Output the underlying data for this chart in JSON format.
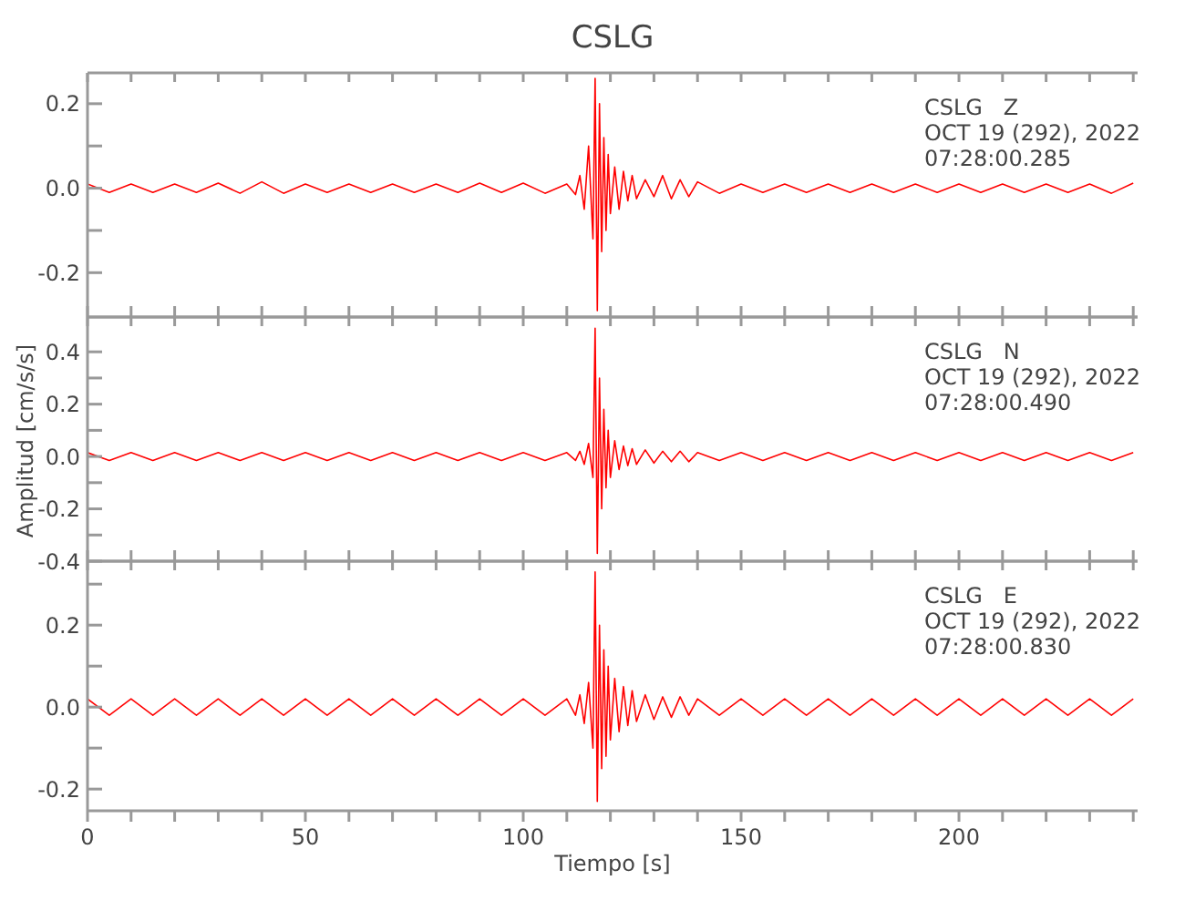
{
  "chart_data": [
    {
      "type": "line",
      "title": "CSLG",
      "annotations": [
        "CSLG   Z",
        "OCT 19 (292), 2022",
        "07:28:00.285"
      ],
      "marker": "none",
      "tick_labels": "y",
      "x": [
        0,
        5,
        10,
        15,
        20,
        25,
        30,
        35,
        40,
        45,
        50,
        55,
        60,
        65,
        70,
        75,
        80,
        85,
        90,
        95,
        100,
        105,
        110,
        112,
        113,
        114,
        115,
        116,
        116.5,
        117,
        117.5,
        118,
        118.5,
        119,
        119.5,
        120,
        121,
        122,
        123,
        124,
        125,
        126,
        128,
        130,
        132,
        134,
        136,
        138,
        140,
        145,
        150,
        155,
        160,
        165,
        170,
        175,
        180,
        185,
        190,
        195,
        200,
        205,
        210,
        215,
        220,
        225,
        230,
        235,
        240
      ],
      "series": [
        {
          "color": "#ff0000",
          "values": [
            0.01,
            -0.01,
            0.01,
            -0.01,
            0.01,
            -0.01,
            0.012,
            -0.012,
            0.015,
            -0.012,
            0.01,
            -0.01,
            0.01,
            -0.01,
            0.01,
            -0.01,
            0.01,
            -0.01,
            0.012,
            -0.01,
            0.012,
            -0.012,
            0.01,
            -0.015,
            0.03,
            -0.05,
            0.1,
            -0.12,
            0.26,
            -0.29,
            0.2,
            -0.15,
            0.12,
            -0.1,
            0.08,
            -0.06,
            0.05,
            -0.05,
            0.04,
            -0.03,
            0.03,
            -0.025,
            0.02,
            -0.02,
            0.03,
            -0.025,
            0.02,
            -0.02,
            0.015,
            -0.012,
            0.01,
            -0.01,
            0.01,
            -0.01,
            0.01,
            -0.01,
            0.01,
            -0.01,
            0.01,
            -0.01,
            0.01,
            -0.01,
            0.01,
            -0.01,
            0.01,
            -0.01,
            0.01,
            -0.012,
            0.012
          ]
        }
      ],
      "xlim": [
        0,
        241
      ],
      "xticks": [
        0,
        {
          "value": 10,
          "label": null
        },
        {
          "value": 20,
          "label": null
        },
        {
          "value": 30,
          "label": null
        },
        {
          "value": 40,
          "label": null
        },
        50,
        {
          "value": 60,
          "label": null
        },
        {
          "value": 70,
          "label": null
        },
        {
          "value": 80,
          "label": null
        },
        {
          "value": 90,
          "label": null
        },
        100,
        {
          "value": 110,
          "label": null
        },
        {
          "value": 120,
          "label": null
        },
        {
          "value": 130,
          "label": null
        },
        {
          "value": 140,
          "label": null
        },
        150,
        {
          "value": 160,
          "label": null
        },
        {
          "value": 170,
          "label": null
        },
        {
          "value": 180,
          "label": null
        },
        {
          "value": 190,
          "label": null
        },
        200,
        {
          "value": 210,
          "label": null
        },
        {
          "value": 220,
          "label": null
        },
        {
          "value": 230,
          "label": null
        },
        {
          "value": 240,
          "label": null
        }
      ],
      "ylim": [
        -0.305,
        0.273
      ],
      "yticks": [
        {
          "value": -0.2,
          "label": "-0.2"
        },
        {
          "value": -0.1,
          "label": null
        },
        {
          "value": 0,
          "label": "0.0"
        },
        {
          "value": 0.1,
          "label": null
        },
        {
          "value": 0.2,
          "label": "0.2"
        }
      ]
    },
    {
      "type": "line",
      "ylabel": "Amplitud [cm/s/s]",
      "annotations": [
        "CSLG   N",
        "OCT 19 (292), 2022",
        "07:28:00.490"
      ],
      "marker": "none",
      "tick_labels": "y",
      "x": [
        0,
        5,
        10,
        15,
        20,
        25,
        30,
        35,
        40,
        45,
        50,
        55,
        60,
        65,
        70,
        75,
        80,
        85,
        90,
        95,
        100,
        105,
        110,
        112,
        113,
        114,
        115,
        116,
        116.5,
        117,
        117.5,
        118,
        118.5,
        119,
        119.5,
        120,
        121,
        122,
        123,
        124,
        125,
        126,
        128,
        130,
        132,
        134,
        136,
        138,
        140,
        145,
        150,
        155,
        160,
        165,
        170,
        175,
        180,
        185,
        190,
        195,
        200,
        205,
        210,
        215,
        220,
        225,
        230,
        235,
        240
      ],
      "series": [
        {
          "color": "#ff0000",
          "values": [
            0.015,
            -0.015,
            0.015,
            -0.015,
            0.015,
            -0.015,
            0.015,
            -0.015,
            0.015,
            -0.015,
            0.015,
            -0.015,
            0.015,
            -0.015,
            0.015,
            -0.015,
            0.015,
            -0.015,
            0.015,
            -0.015,
            0.015,
            -0.015,
            0.015,
            -0.015,
            0.02,
            -0.03,
            0.05,
            -0.08,
            0.49,
            -0.37,
            0.3,
            -0.2,
            0.18,
            -0.12,
            0.1,
            -0.08,
            0.06,
            -0.05,
            0.04,
            -0.035,
            0.03,
            -0.03,
            0.025,
            -0.025,
            0.02,
            -0.02,
            0.02,
            -0.02,
            0.015,
            -0.015,
            0.015,
            -0.015,
            0.015,
            -0.015,
            0.015,
            -0.015,
            0.015,
            -0.015,
            0.015,
            -0.015,
            0.015,
            -0.015,
            0.015,
            -0.015,
            0.015,
            -0.015,
            0.015,
            -0.015,
            0.015
          ]
        }
      ],
      "xlim": [
        0,
        241
      ],
      "xticks": [
        0,
        {
          "value": 10,
          "label": null
        },
        {
          "value": 20,
          "label": null
        },
        {
          "value": 30,
          "label": null
        },
        {
          "value": 40,
          "label": null
        },
        50,
        {
          "value": 60,
          "label": null
        },
        {
          "value": 70,
          "label": null
        },
        {
          "value": 80,
          "label": null
        },
        {
          "value": 90,
          "label": null
        },
        100,
        {
          "value": 110,
          "label": null
        },
        {
          "value": 120,
          "label": null
        },
        {
          "value": 130,
          "label": null
        },
        {
          "value": 140,
          "label": null
        },
        150,
        {
          "value": 160,
          "label": null
        },
        {
          "value": 170,
          "label": null
        },
        {
          "value": 180,
          "label": null
        },
        {
          "value": 190,
          "label": null
        },
        200,
        {
          "value": 210,
          "label": null
        },
        {
          "value": 220,
          "label": null
        },
        {
          "value": 230,
          "label": null
        },
        {
          "value": 240,
          "label": null
        }
      ],
      "ylim": [
        -0.4,
        0.533
      ],
      "yticks": [
        {
          "value": -0.4,
          "label": "-0.4"
        },
        {
          "value": -0.3,
          "label": null
        },
        {
          "value": -0.2,
          "label": "-0.2"
        },
        {
          "value": -0.1,
          "label": null
        },
        {
          "value": 0,
          "label": "0.0"
        },
        {
          "value": 0.1,
          "label": null
        },
        {
          "value": 0.2,
          "label": "0.2"
        },
        {
          "value": 0.3,
          "label": null
        },
        {
          "value": 0.4,
          "label": "0.4"
        }
      ]
    },
    {
      "type": "line",
      "xlabel": "Tiempo [s]",
      "annotations": [
        "CSLG   E",
        "OCT 19 (292), 2022",
        "07:28:00.830"
      ],
      "marker": "none",
      "x": [
        0,
        5,
        10,
        15,
        20,
        25,
        30,
        35,
        40,
        45,
        50,
        55,
        60,
        65,
        70,
        75,
        80,
        85,
        90,
        95,
        100,
        105,
        110,
        112,
        113,
        114,
        115,
        116,
        116.5,
        117,
        117.5,
        118,
        118.5,
        119,
        119.5,
        120,
        121,
        122,
        123,
        124,
        125,
        126,
        128,
        130,
        132,
        134,
        136,
        138,
        140,
        145,
        150,
        155,
        160,
        165,
        170,
        175,
        180,
        185,
        190,
        195,
        200,
        205,
        210,
        215,
        220,
        225,
        230,
        235,
        240
      ],
      "series": [
        {
          "color": "#ff0000",
          "values": [
            0.02,
            -0.02,
            0.02,
            -0.02,
            0.02,
            -0.02,
            0.02,
            -0.02,
            0.02,
            -0.02,
            0.02,
            -0.02,
            0.02,
            -0.02,
            0.02,
            -0.02,
            0.02,
            -0.02,
            0.02,
            -0.02,
            0.02,
            -0.02,
            0.02,
            -0.02,
            0.03,
            -0.04,
            0.06,
            -0.1,
            0.33,
            -0.23,
            0.2,
            -0.15,
            0.14,
            -0.12,
            0.1,
            -0.08,
            0.07,
            -0.06,
            0.05,
            -0.045,
            0.04,
            -0.035,
            0.03,
            -0.03,
            0.025,
            -0.025,
            0.025,
            -0.02,
            0.02,
            -0.02,
            0.02,
            -0.02,
            0.02,
            -0.02,
            0.02,
            -0.02,
            0.02,
            -0.02,
            0.02,
            -0.02,
            0.02,
            -0.02,
            0.02,
            -0.02,
            0.02,
            -0.02,
            0.02,
            -0.02,
            0.02
          ]
        }
      ],
      "xlim": [
        0,
        241
      ],
      "xticks": [
        0,
        {
          "value": 10,
          "label": null
        },
        {
          "value": 20,
          "label": null
        },
        {
          "value": 30,
          "label": null
        },
        {
          "value": 40,
          "label": null
        },
        50,
        {
          "value": 60,
          "label": null
        },
        {
          "value": 70,
          "label": null
        },
        {
          "value": 80,
          "label": null
        },
        {
          "value": 90,
          "label": null
        },
        100,
        {
          "value": 110,
          "label": null
        },
        {
          "value": 120,
          "label": null
        },
        {
          "value": 130,
          "label": null
        },
        {
          "value": 140,
          "label": null
        },
        150,
        {
          "value": 160,
          "label": null
        },
        {
          "value": 170,
          "label": null
        },
        {
          "value": 180,
          "label": null
        },
        {
          "value": 190,
          "label": null
        },
        200,
        {
          "value": 210,
          "label": null
        },
        {
          "value": 220,
          "label": null
        },
        {
          "value": 230,
          "label": null
        },
        {
          "value": 240,
          "label": null
        }
      ],
      "ylim": [
        -0.253,
        0.356
      ],
      "yticks": [
        {
          "value": -0.2,
          "label": "-0.2"
        },
        {
          "value": -0.1,
          "label": null
        },
        {
          "value": 0,
          "label": "0.0"
        },
        {
          "value": 0.1,
          "label": null
        },
        {
          "value": 0.2,
          "label": "0.2"
        },
        {
          "value": 0.3,
          "label": null
        }
      ]
    }
  ]
}
